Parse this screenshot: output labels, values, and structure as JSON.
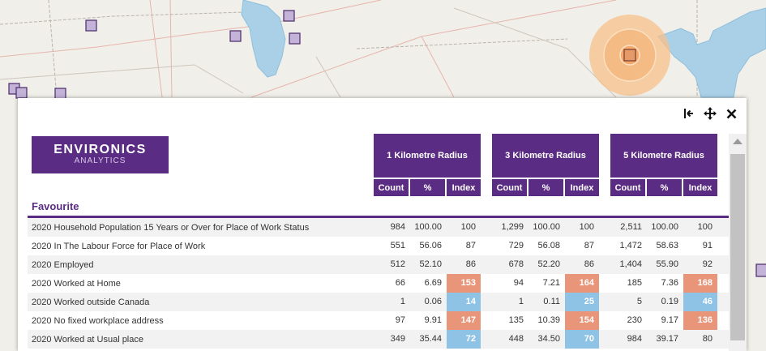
{
  "logo": {
    "main": "ENVIRONICS",
    "sub": "ANALYTICS"
  },
  "toolbar_icons": [
    "collapse-left-icon",
    "move-icon",
    "close-icon"
  ],
  "radius_headers": [
    "1 Kilometre Radius",
    "3 Kilometre Radius",
    "5 Kilometre Radius"
  ],
  "column_headers": [
    "Count",
    "%",
    "Index"
  ],
  "section": {
    "title": "Favourite"
  },
  "rows": [
    {
      "label": "2020 Household Population 15 Years or Over for Place of Work Status",
      "r1": {
        "count": "984",
        "pct": "100.00",
        "index": "100",
        "flag": ""
      },
      "r3": {
        "count": "1,299",
        "pct": "100.00",
        "index": "100",
        "flag": ""
      },
      "r5": {
        "count": "2,511",
        "pct": "100.00",
        "index": "100",
        "flag": ""
      }
    },
    {
      "label": "2020 In The Labour Force for Place of Work",
      "r1": {
        "count": "551",
        "pct": "56.06",
        "index": "87",
        "flag": ""
      },
      "r3": {
        "count": "729",
        "pct": "56.08",
        "index": "87",
        "flag": ""
      },
      "r5": {
        "count": "1,472",
        "pct": "58.63",
        "index": "91",
        "flag": ""
      }
    },
    {
      "label": "2020 Employed",
      "r1": {
        "count": "512",
        "pct": "52.10",
        "index": "86",
        "flag": ""
      },
      "r3": {
        "count": "678",
        "pct": "52.20",
        "index": "86",
        "flag": ""
      },
      "r5": {
        "count": "1,404",
        "pct": "55.90",
        "index": "92",
        "flag": ""
      }
    },
    {
      "label": "2020 Worked at Home",
      "r1": {
        "count": "66",
        "pct": "6.69",
        "index": "153",
        "flag": "hi"
      },
      "r3": {
        "count": "94",
        "pct": "7.21",
        "index": "164",
        "flag": "hi"
      },
      "r5": {
        "count": "185",
        "pct": "7.36",
        "index": "168",
        "flag": "hi"
      }
    },
    {
      "label": "2020 Worked outside Canada",
      "r1": {
        "count": "1",
        "pct": "0.06",
        "index": "14",
        "flag": "lo"
      },
      "r3": {
        "count": "1",
        "pct": "0.11",
        "index": "25",
        "flag": "lo"
      },
      "r5": {
        "count": "5",
        "pct": "0.19",
        "index": "46",
        "flag": "lo"
      }
    },
    {
      "label": "2020 No fixed workplace address",
      "r1": {
        "count": "97",
        "pct": "9.91",
        "index": "147",
        "flag": "hi"
      },
      "r3": {
        "count": "135",
        "pct": "10.39",
        "index": "154",
        "flag": "hi"
      },
      "r5": {
        "count": "230",
        "pct": "9.17",
        "index": "136",
        "flag": "hi"
      }
    },
    {
      "label": "2020 Worked at Usual place",
      "r1": {
        "count": "349",
        "pct": "35.44",
        "index": "72",
        "flag": "lo"
      },
      "r3": {
        "count": "448",
        "pct": "34.50",
        "index": "70",
        "flag": "lo"
      },
      "r5": {
        "count": "984",
        "pct": "39.17",
        "index": "80",
        "flag": ""
      }
    }
  ],
  "colors": {
    "brand": "#5b2c83",
    "high": "#e9957a",
    "low": "#8fc3e6",
    "water": "#aad0e8",
    "buffer": "#f7c089"
  }
}
